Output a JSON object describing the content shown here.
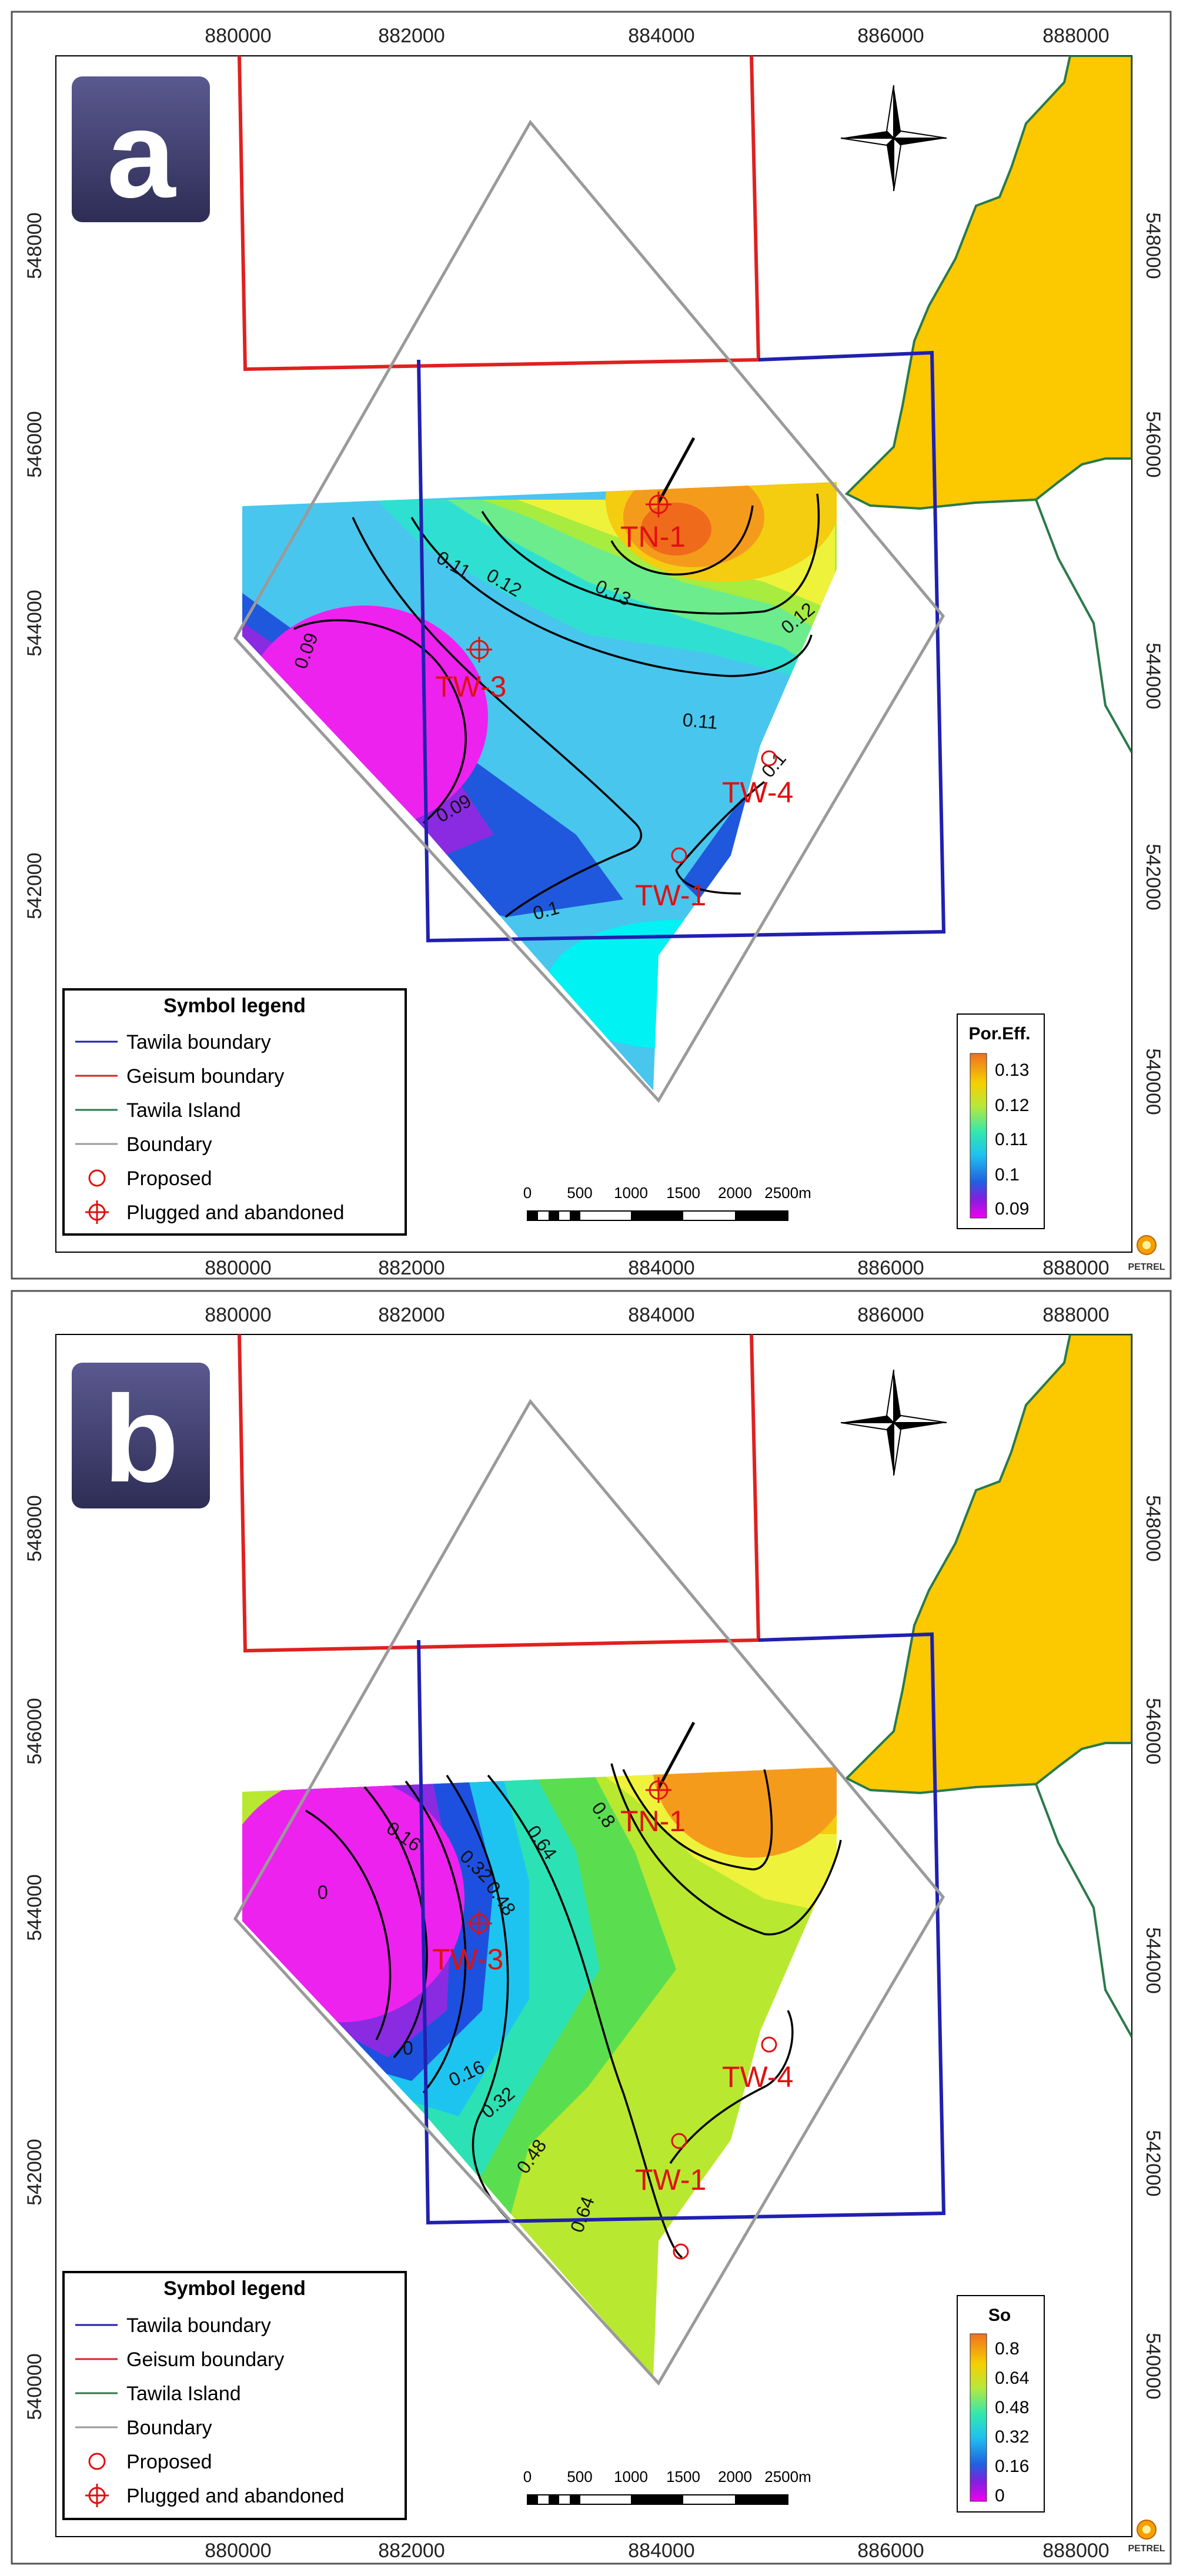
{
  "panels": [
    {
      "id": "a",
      "label": "a",
      "x_ticks": [
        "880000",
        "882000",
        "884000",
        "886000",
        "888000"
      ],
      "y_ticks": [
        "548000",
        "546000",
        "544000",
        "542000",
        "540000"
      ],
      "contour_labels": [
        "0.13",
        "0.12",
        "0.12",
        "0.11",
        "0.11",
        "0.1",
        "0.1",
        "0.09",
        "0.09",
        "0.1"
      ],
      "wells": [
        "TN-1",
        "TW-3",
        "TW-4",
        "TW-1"
      ],
      "legend_title": "Symbol legend",
      "legend_items": [
        "Tawila boundary",
        "Geisum boundary",
        "Tawila Island",
        "Boundary",
        "Proposed",
        "Plugged and abandoned"
      ],
      "scale_labels": [
        "0",
        "500",
        "1000",
        "1500",
        "2000",
        "2500m"
      ],
      "colorbar_title": "Por.Eff.",
      "colorbar_ticks": [
        "0.13",
        "0.12",
        "0.11",
        "0.1",
        "0.09"
      ],
      "logo": "PETREL"
    },
    {
      "id": "b",
      "label": "b",
      "x_ticks": [
        "880000",
        "882000",
        "884000",
        "886000",
        "888000"
      ],
      "y_ticks": [
        "548000",
        "546000",
        "544000",
        "542000",
        "540000"
      ],
      "contour_labels": [
        "0.16",
        "0.32",
        "0.48",
        "0.64",
        "0.8",
        "0",
        "0",
        "0.16",
        "0.32",
        "0.48",
        "0.64"
      ],
      "wells": [
        "TN-1",
        "TW-3",
        "TW-4",
        "TW-1"
      ],
      "legend_title": "Symbol legend",
      "legend_items": [
        "Tawila boundary",
        "Geisum boundary",
        "Tawila Island",
        "Boundary",
        "Proposed",
        "Plugged and abandoned"
      ],
      "scale_labels": [
        "0",
        "500",
        "1000",
        "1500",
        "2000",
        "2500m"
      ],
      "colorbar_title": "So",
      "colorbar_ticks": [
        "0.8",
        "0.64",
        "0.48",
        "0.32",
        "0.16",
        "0"
      ],
      "logo": "PETREL"
    }
  ],
  "colors": {
    "geisum_boundary": "#e02020",
    "tawila_boundary": "#2020b0",
    "diamond_boundary": "#9a9a9a",
    "land": "#fcc800",
    "coast": "#2a7a4a",
    "well_label": "#e01010",
    "panel_badge": "#3e3d6e"
  }
}
